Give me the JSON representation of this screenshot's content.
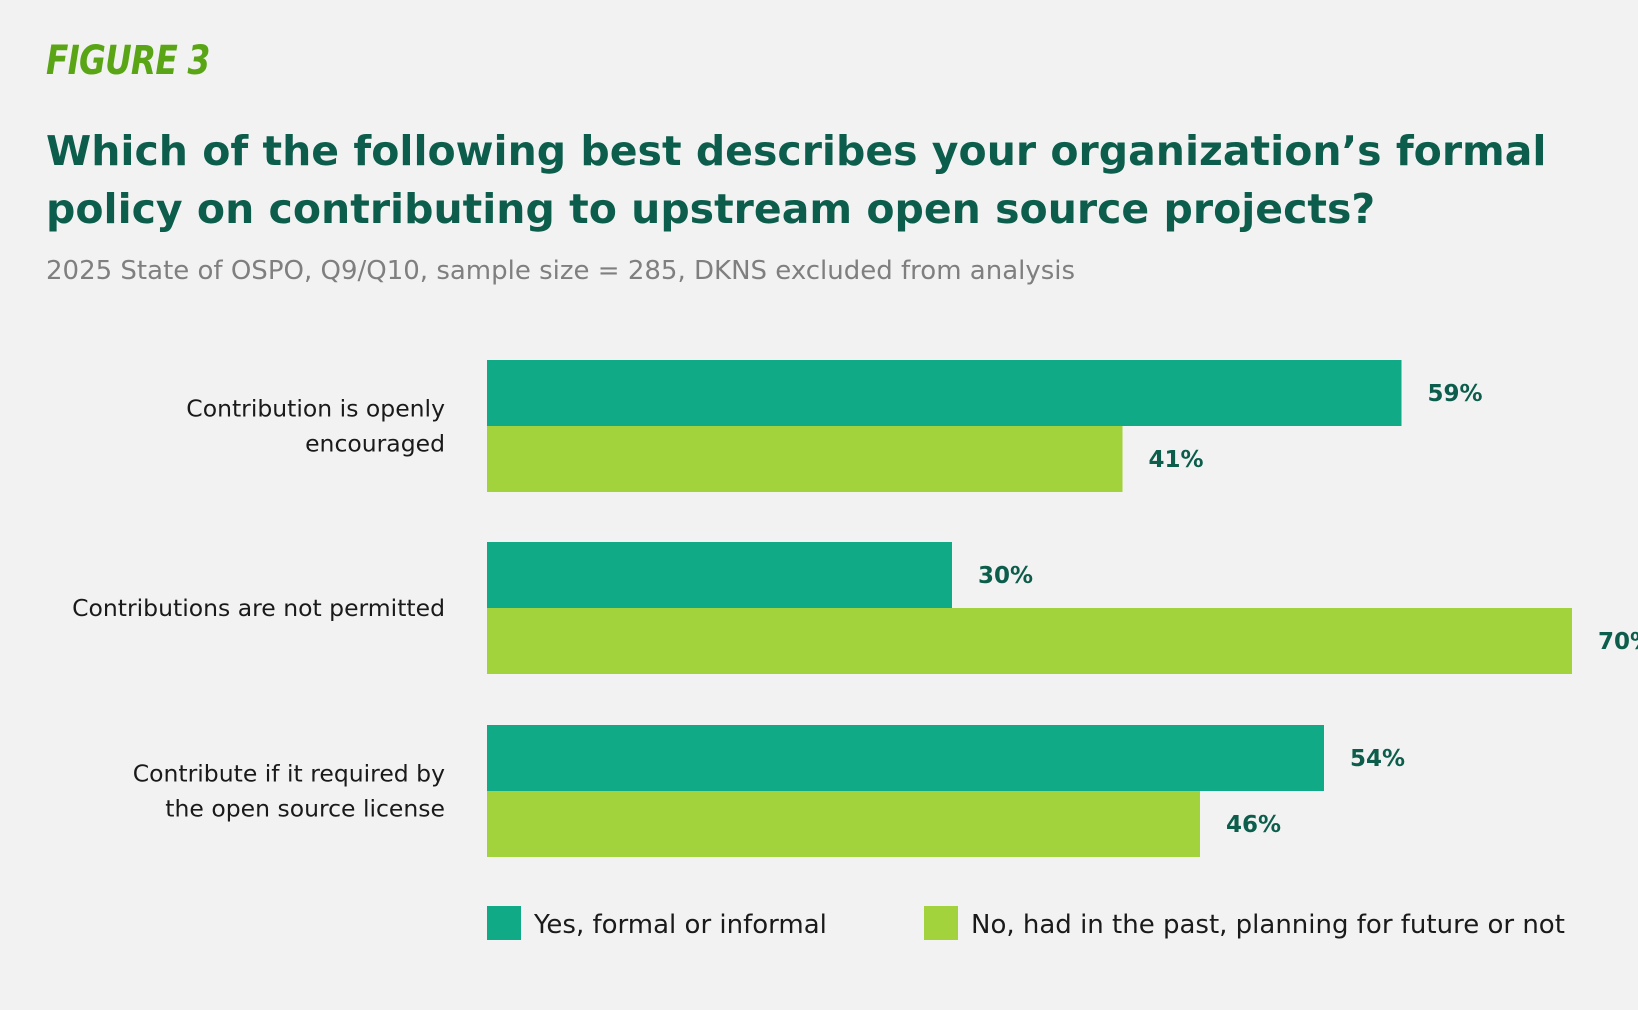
{
  "figure_label": "FIGURE 3",
  "chart_data": {
    "type": "bar",
    "orientation": "horizontal",
    "title": "Which of the following best describes your organization’s formal policy on contributing to upstream open source projects?",
    "subtitle": "2025 State of OSPO, Q9/Q10, sample size = 285, DKNS excluded from analysis",
    "categories": [
      [
        "Contribution is openly",
        "encouraged"
      ],
      [
        "Contributions are not permitted"
      ],
      [
        "Contribute if it required by",
        "the open source license"
      ]
    ],
    "series": [
      {
        "name": "Yes, formal or informal",
        "color": "#10aa86",
        "values": [
          59,
          30,
          54
        ]
      },
      {
        "name": "No, had in the past, planning for future or not",
        "color": "#a2d33c",
        "values": [
          41,
          70,
          46
        ]
      }
    ],
    "value_suffix": "%",
    "xlim": [
      0,
      70
    ],
    "grid": false,
    "legend_position": "bottom"
  }
}
